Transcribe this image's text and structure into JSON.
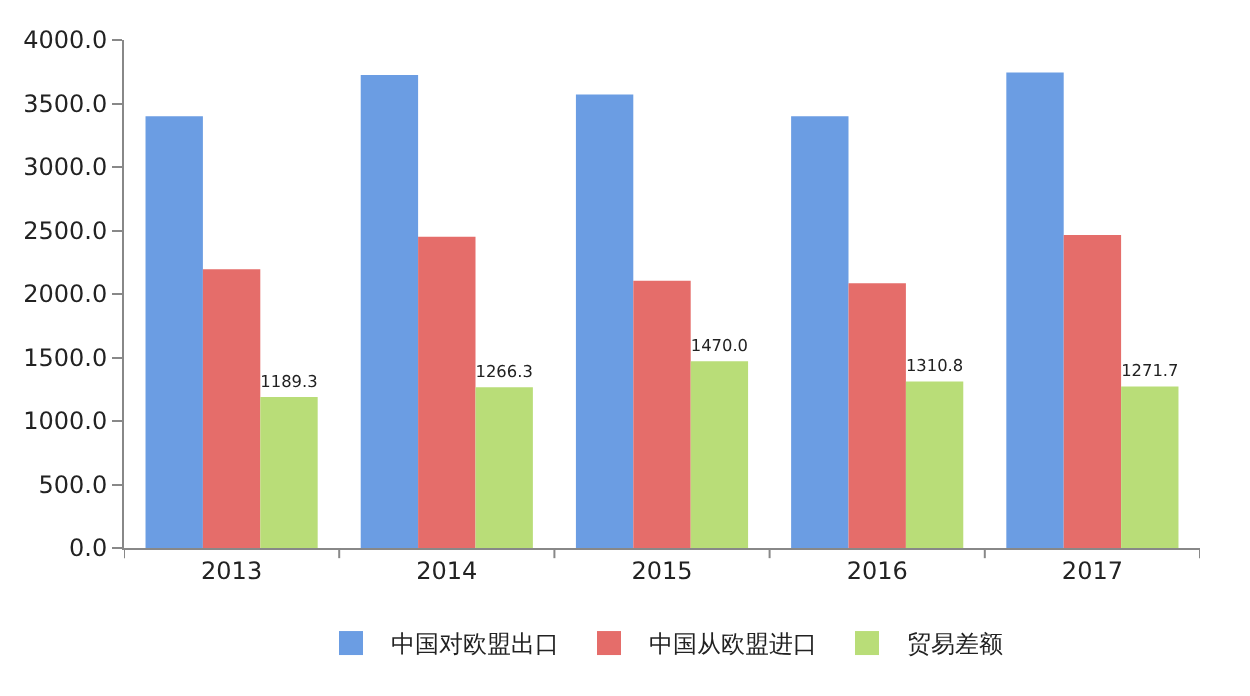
{
  "chart_data": {
    "type": "bar",
    "categories": [
      "2013",
      "2014",
      "2015",
      "2016",
      "2017"
    ],
    "series": [
      {
        "name": "中国对欧盟出口",
        "color": "#6b9de3",
        "values": [
          3400,
          3725,
          3570,
          3400,
          3745
        ]
      },
      {
        "name": "中国从欧盟进口",
        "color": "#e56d6a",
        "values": [
          2195,
          2450,
          2105,
          2085,
          2465
        ]
      },
      {
        "name": "贸易差额",
        "color": "#b9dd78",
        "values": [
          1189.3,
          1266.3,
          1470.0,
          1310.8,
          1271.7
        ],
        "value_labels": [
          "1189.3",
          "1266.3",
          "1470.0",
          "1310.8",
          "1271.7"
        ]
      }
    ],
    "ylim": [
      0,
      4000
    ],
    "yticks": [
      {
        "value": 0,
        "label": "0.0"
      },
      {
        "value": 500,
        "label": "500.0"
      },
      {
        "value": 1000,
        "label": "1000.0"
      },
      {
        "value": 1500,
        "label": "1500.0"
      },
      {
        "value": 2000,
        "label": "2000.0"
      },
      {
        "value": 2500,
        "label": "2500.0"
      },
      {
        "value": 3000,
        "label": "3000.0"
      },
      {
        "value": 3500,
        "label": "3500.0"
      },
      {
        "value": 4000,
        "label": "4000.0"
      }
    ],
    "grid": false,
    "legend": "bottom"
  }
}
